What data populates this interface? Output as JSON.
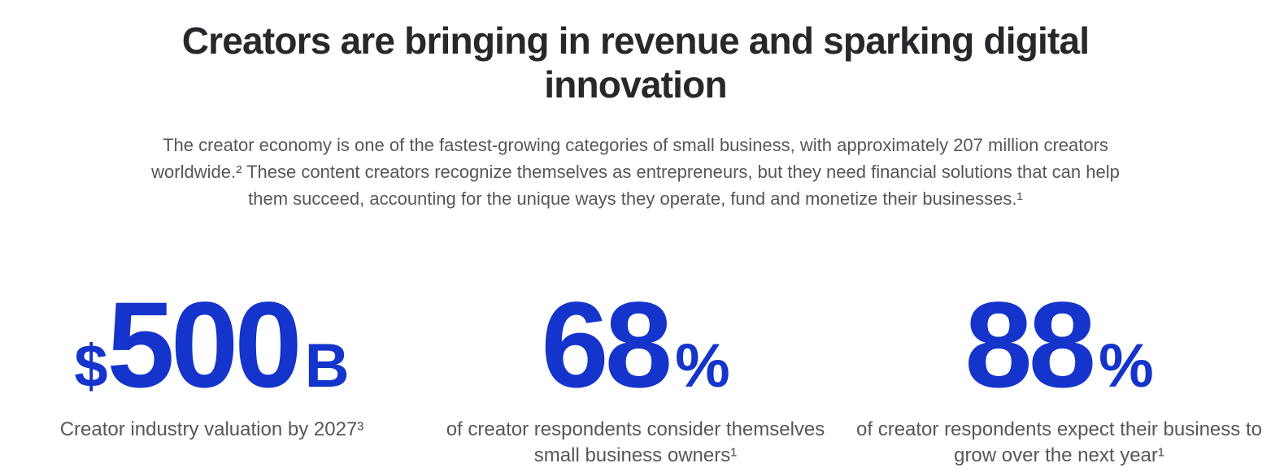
{
  "header": {
    "line1": "Creators are bringing in revenue and sparking digital",
    "line2": "innovation"
  },
  "intro": {
    "text": "The creator economy is one of the fastest-growing categories of small business, with approximately 207 million creators worldwide.² These content creators recognize themselves as entrepreneurs, but they need financial solutions that can help them succeed, accounting for the unique ways they operate, fund and monetize their businesses.¹"
  },
  "stats": {
    "items": [
      {
        "prefix": "$",
        "value": "500",
        "suffix": "B",
        "caption": "Creator industry valuation by 2027³"
      },
      {
        "prefix": "",
        "value": "68",
        "suffix": "%",
        "caption": "of creator respondents consider themselves small business owners¹"
      },
      {
        "prefix": "",
        "value": "88",
        "suffix": "%",
        "caption": "of creator respondents expect their business to grow over the next year¹"
      }
    ]
  },
  "colors": {
    "background": "#ffffff",
    "heading_text": "#26282b",
    "body_text": "#55575b",
    "stat_accent": "#1434cb"
  }
}
